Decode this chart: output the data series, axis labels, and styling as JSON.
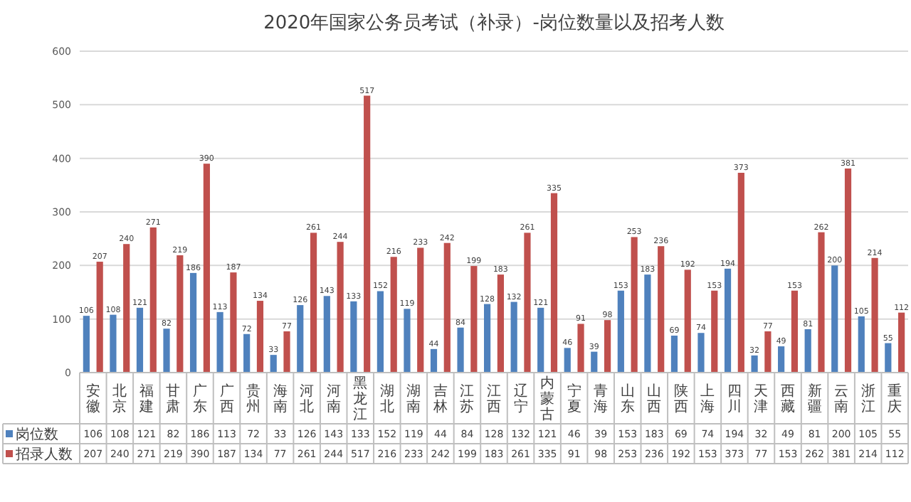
{
  "chart_data": {
    "type": "bar",
    "title": "2020年国家公务员考试（补录）-岗位数量以及招考人数",
    "categories": [
      "安徽",
      "北京",
      "福建",
      "甘肃",
      "广东",
      "广西",
      "贵州",
      "海南",
      "河北",
      "河南",
      "黑龙江",
      "湖北",
      "湖南",
      "吉林",
      "江苏",
      "江西",
      "辽宁",
      "内蒙古",
      "宁夏",
      "青海",
      "山东",
      "山西",
      "陕西",
      "上海",
      "四川",
      "天津",
      "西藏",
      "新疆",
      "云南",
      "浙江",
      "重庆"
    ],
    "series": [
      {
        "name": "岗位数",
        "color": "#4f81bd",
        "values": [
          106,
          108,
          121,
          82,
          186,
          113,
          72,
          33,
          126,
          143,
          133,
          152,
          119,
          44,
          84,
          128,
          132,
          121,
          46,
          39,
          153,
          183,
          69,
          74,
          194,
          32,
          49,
          81,
          200,
          105,
          55
        ]
      },
      {
        "name": "招录人数",
        "color": "#c0504d",
        "values": [
          207,
          240,
          271,
          219,
          390,
          187,
          134,
          77,
          261,
          244,
          517,
          216,
          233,
          242,
          199,
          183,
          261,
          335,
          91,
          98,
          253,
          236,
          192,
          153,
          373,
          77,
          153,
          262,
          381,
          214,
          112
        ]
      }
    ],
    "annotations": [
      "106",
      "108",
      "121",
      "82",
      "186",
      "113",
      "72",
      "33",
      "126",
      "143",
      "133",
      "152",
      "119",
      "44",
      "84",
      "128",
      "132",
      "121",
      "46",
      "39",
      "153",
      "183",
      "69",
      "74",
      "194",
      "32",
      "49",
      "81",
      "200",
      "105",
      "55",
      "207",
      "240",
      "271",
      "219",
      "390",
      "187",
      "134",
      "77",
      "261",
      "244",
      "517",
      "216",
      "233",
      "242",
      "199",
      "183",
      "261",
      "335",
      "91",
      "98",
      "253",
      "236",
      "192",
      "153",
      "373",
      "77",
      "153",
      "262",
      "381",
      "214",
      "112"
    ],
    "ylim": [
      0,
      600
    ],
    "yticks": [
      0,
      100,
      200,
      300,
      400,
      500,
      600
    ],
    "grid": "y",
    "legend": "bottom left",
    "data_labels": true
  }
}
